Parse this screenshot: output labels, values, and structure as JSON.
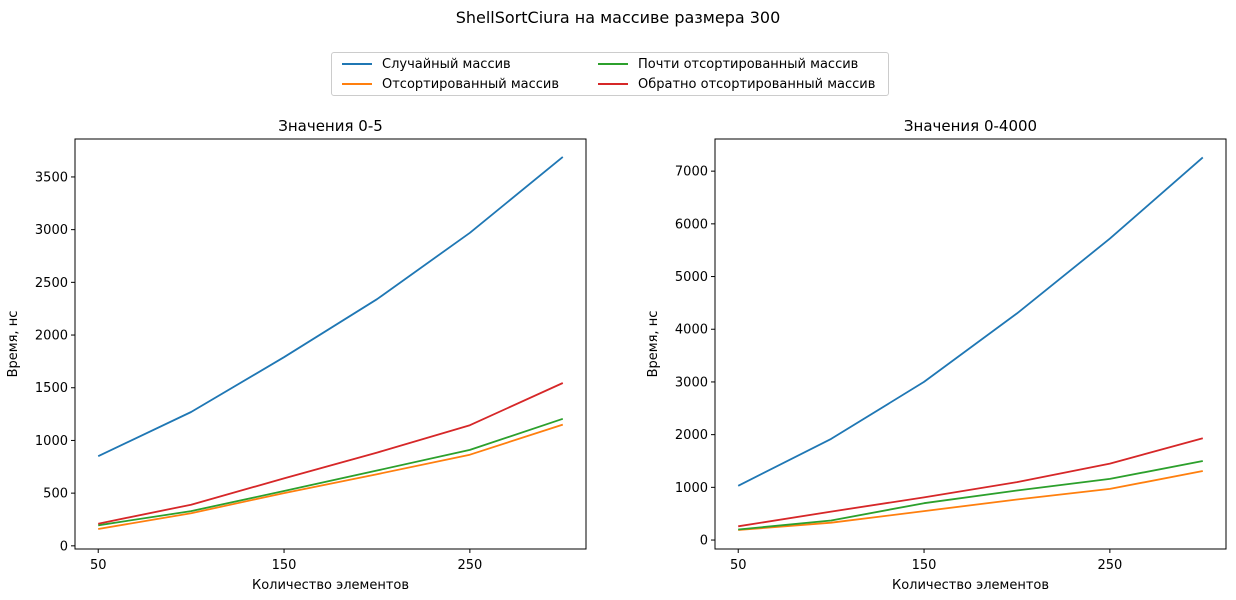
{
  "figure_title": "ShellSortCiura на массиве размера 300",
  "colors": {
    "series": [
      "#1f77b4",
      "#ff7f0e",
      "#2ca02c",
      "#d62728"
    ],
    "axis": "#000000",
    "legend_border": "#cccccc"
  },
  "legend": {
    "placement": "top-center",
    "columns": 2,
    "entries": [
      "Случайный массив",
      "Отсортированный массив",
      "Почти отсортированный массив",
      "Обратно отсортированный массив"
    ]
  },
  "chart_data": [
    {
      "type": "line",
      "title": "Значения 0-5",
      "xlabel": "Количество элементов",
      "ylabel": "Время, нс",
      "x": [
        50,
        100,
        150,
        200,
        250,
        300
      ],
      "xticks": [
        50,
        150,
        250
      ],
      "xlim": [
        37.5,
        312.5
      ],
      "yticks": [
        0,
        500,
        1000,
        1500,
        2000,
        2500,
        3000,
        3500
      ],
      "ylim": [
        -30,
        3860
      ],
      "grid": false,
      "series": [
        {
          "name": "Случайный массив",
          "values": [
            850,
            1270,
            1790,
            2340,
            2970,
            3690
          ]
        },
        {
          "name": "Отсортированный массив",
          "values": [
            160,
            310,
            500,
            680,
            865,
            1150
          ]
        },
        {
          "name": "Почти отсортированный массив",
          "values": [
            195,
            330,
            520,
            715,
            910,
            1205
          ]
        },
        {
          "name": "Обратно отсортированный массив",
          "values": [
            210,
            390,
            640,
            885,
            1145,
            1545
          ]
        }
      ]
    },
    {
      "type": "line",
      "title": "Значения 0-4000",
      "xlabel": "Количество элементов",
      "ylabel": "Время, нс",
      "x": [
        50,
        100,
        150,
        200,
        250,
        300
      ],
      "xticks": [
        50,
        150,
        250
      ],
      "xlim": [
        37.5,
        312.5
      ],
      "yticks": [
        0,
        1000,
        2000,
        3000,
        4000,
        5000,
        6000,
        7000
      ],
      "ylim": [
        -170,
        7610
      ],
      "grid": false,
      "series": [
        {
          "name": "Случайный массив",
          "values": [
            1030,
            1920,
            3000,
            4300,
            5720,
            7260
          ]
        },
        {
          "name": "Отсортированный массив",
          "values": [
            190,
            330,
            550,
            770,
            970,
            1310
          ]
        },
        {
          "name": "Почти отсортированный массив",
          "values": [
            200,
            370,
            700,
            940,
            1160,
            1500
          ]
        },
        {
          "name": "Обратно отсортированный массив",
          "values": [
            260,
            540,
            810,
            1100,
            1450,
            1930
          ]
        }
      ]
    }
  ]
}
